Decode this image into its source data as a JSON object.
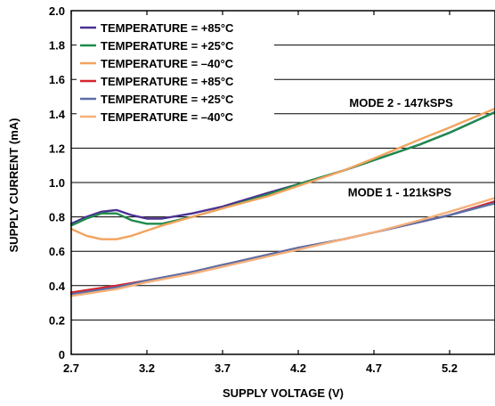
{
  "chart_data": {
    "type": "line",
    "xlabel": "SUPPLY VOLTAGE (V)",
    "ylabel": "SUPPLY CURRENT (mA)",
    "xlim": [
      2.7,
      5.5
    ],
    "ylim": [
      0,
      2.0
    ],
    "x_ticks": [
      "2.7",
      "3.2",
      "3.7",
      "4.2",
      "4.7",
      "5.2"
    ],
    "x_tick_values": [
      2.7,
      3.2,
      3.7,
      4.2,
      4.7,
      5.2
    ],
    "y_ticks": [
      "0",
      "0.2",
      "0.4",
      "0.6",
      "0.8",
      "1.0",
      "1.2",
      "1.4",
      "1.6",
      "1.8",
      "2.0"
    ],
    "y_tick_values": [
      0,
      0.2,
      0.4,
      0.6,
      0.8,
      1.0,
      1.2,
      1.4,
      1.6,
      1.8,
      2.0
    ],
    "grid": "horizontal",
    "legend_position": "top-left",
    "annotations": [
      {
        "text": "MODE 2 - 147kSPS",
        "x": 4.88,
        "y": 1.44
      },
      {
        "text": "MODE 1 - 121kSPS",
        "x": 4.87,
        "y": 0.92
      }
    ],
    "series": [
      {
        "name": "TEMPERATURE = +85°C",
        "color": "#4b3192",
        "x": [
          2.7,
          2.8,
          2.9,
          3.0,
          3.1,
          3.2,
          3.3,
          3.5,
          3.7,
          4.0,
          4.2,
          4.5,
          4.7,
          5.0,
          5.2,
          5.5
        ],
        "y": [
          0.76,
          0.8,
          0.83,
          0.84,
          0.81,
          0.79,
          0.79,
          0.82,
          0.86,
          0.94,
          0.99,
          1.07,
          1.13,
          1.22,
          1.29,
          1.41
        ]
      },
      {
        "name": "TEMPERATURE = +25°C",
        "color": "#1f8b4c",
        "x": [
          2.7,
          2.8,
          2.9,
          3.0,
          3.1,
          3.2,
          3.3,
          3.5,
          3.7,
          4.0,
          4.2,
          4.5,
          4.7,
          5.0,
          5.2,
          5.5
        ],
        "y": [
          0.75,
          0.79,
          0.82,
          0.82,
          0.78,
          0.76,
          0.76,
          0.8,
          0.85,
          0.93,
          0.99,
          1.07,
          1.13,
          1.22,
          1.29,
          1.41
        ]
      },
      {
        "name": "TEMPERATURE = –40°C",
        "color": "#f2a35e",
        "x": [
          2.7,
          2.8,
          2.9,
          3.0,
          3.1,
          3.2,
          3.3,
          3.5,
          3.7,
          4.0,
          4.2,
          4.5,
          4.7,
          5.0,
          5.2,
          5.5
        ],
        "y": [
          0.73,
          0.69,
          0.67,
          0.67,
          0.69,
          0.72,
          0.75,
          0.8,
          0.85,
          0.92,
          0.98,
          1.07,
          1.14,
          1.25,
          1.32,
          1.43
        ]
      },
      {
        "name": "TEMPERATURE = +85°C",
        "color": "#d7232e",
        "x": [
          2.7,
          3.0,
          3.2,
          3.5,
          3.7,
          4.0,
          4.2,
          4.5,
          4.7,
          5.0,
          5.2,
          5.5
        ],
        "y": [
          0.36,
          0.4,
          0.43,
          0.48,
          0.52,
          0.58,
          0.62,
          0.67,
          0.71,
          0.77,
          0.81,
          0.89
        ]
      },
      {
        "name": "TEMPERATURE = +25°C",
        "color": "#5a6fa8",
        "x": [
          2.7,
          3.0,
          3.2,
          3.5,
          3.7,
          4.0,
          4.2,
          4.5,
          4.7,
          5.0,
          5.2,
          5.5
        ],
        "y": [
          0.35,
          0.39,
          0.43,
          0.48,
          0.52,
          0.58,
          0.62,
          0.67,
          0.71,
          0.77,
          0.81,
          0.88
        ]
      },
      {
        "name": "TEMPERATURE = –40°C",
        "color": "#f5b07a",
        "x": [
          2.7,
          3.0,
          3.2,
          3.5,
          3.7,
          4.0,
          4.2,
          4.5,
          4.7,
          5.0,
          5.2,
          5.5
        ],
        "y": [
          0.34,
          0.38,
          0.42,
          0.47,
          0.51,
          0.57,
          0.61,
          0.67,
          0.71,
          0.78,
          0.83,
          0.91
        ]
      }
    ]
  }
}
